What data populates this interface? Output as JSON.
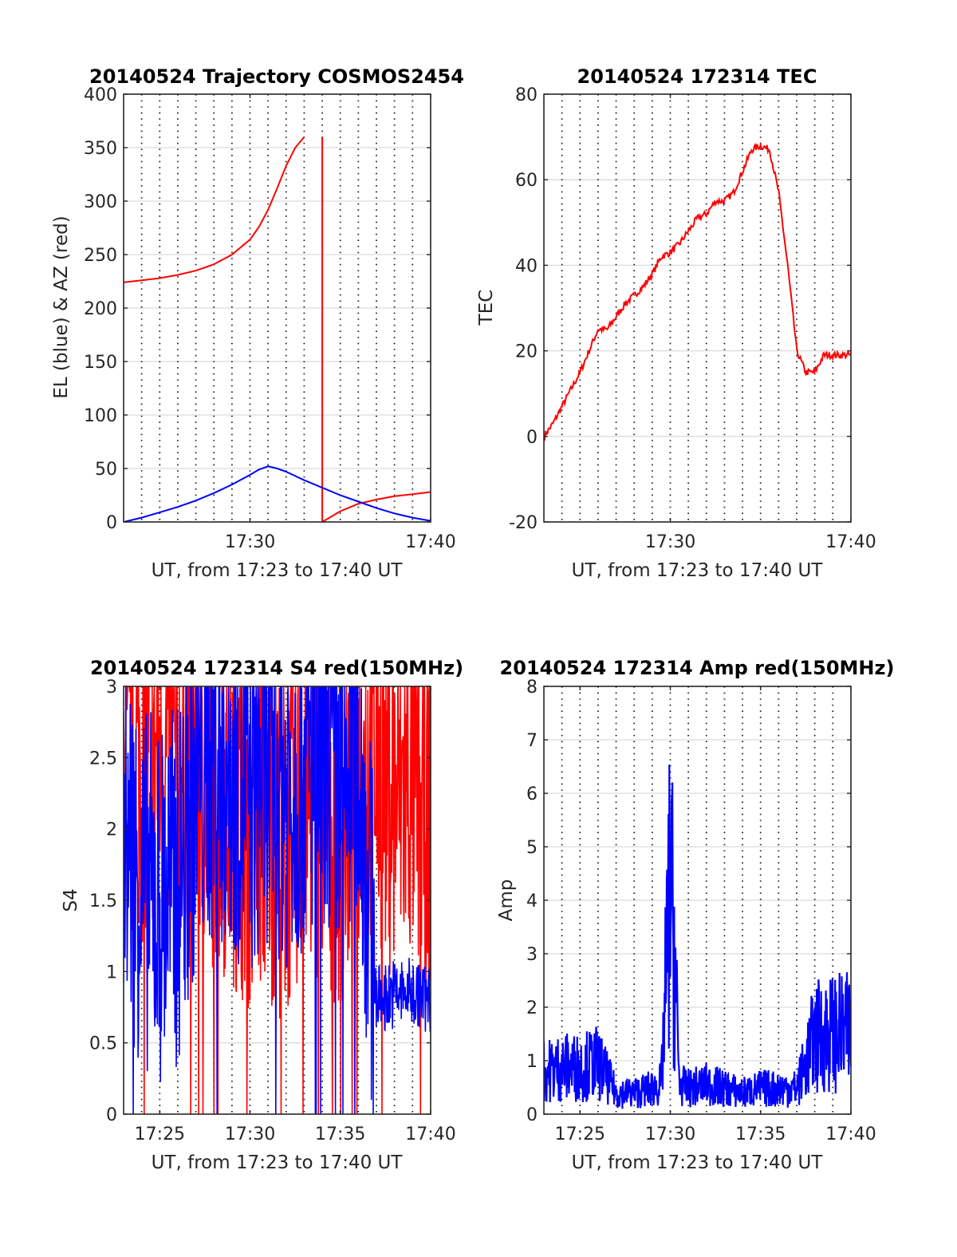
{
  "chart_data": [
    {
      "type": "line",
      "title": "20140524 Trajectory COSMOS2454",
      "xlabel": "UT, from 17:23 to 17:40 UT",
      "ylabel": "EL (blue) & AZ (red)",
      "xlim": [
        17.3833,
        17.6667
      ],
      "ylim": [
        0,
        400
      ],
      "yticks": [
        0,
        50,
        100,
        150,
        200,
        250,
        300,
        350,
        400
      ],
      "xticks": [
        {
          "value": 17.5,
          "label": "17:30"
        },
        {
          "value": 17.6667,
          "label": "17:40"
        }
      ],
      "grid": true,
      "series": [
        {
          "color": "#ff0000",
          "x": [
            17.3833,
            17.4,
            17.4167,
            17.4333,
            17.45,
            17.4667,
            17.4833,
            17.5,
            17.5083,
            17.5167,
            17.525,
            17.5333,
            17.5417,
            17.55,
            17.5667,
            17.5833,
            17.6,
            17.6167,
            17.6333,
            17.65,
            17.6667
          ],
          "values": [
            224,
            226,
            228,
            231,
            235,
            241,
            250,
            264,
            276,
            292,
            312,
            333,
            350,
            360,
            null,
            10,
            17,
            21,
            24,
            26,
            28
          ]
        },
        {
          "color": "#0000ff",
          "x": [
            17.3833,
            17.4,
            17.4167,
            17.4333,
            17.45,
            17.4667,
            17.4833,
            17.5,
            17.5083,
            17.5167,
            17.525,
            17.5333,
            17.5417,
            17.55,
            17.5667,
            17.5833,
            17.6,
            17.6167,
            17.6333,
            17.65,
            17.6667
          ],
          "values": [
            0,
            4,
            9,
            14,
            20,
            27,
            35,
            44,
            49,
            52,
            50,
            47,
            43,
            39,
            32,
            25,
            19,
            13,
            8,
            4,
            1
          ]
        }
      ]
    },
    {
      "type": "line",
      "title": "20140524 172314 TEC",
      "xlabel": "UT, from 17:23 to 17:40 UT",
      "ylabel": "TEC",
      "xlim": [
        17.3833,
        17.6667
      ],
      "ylim": [
        -20,
        80
      ],
      "yticks": [
        -20,
        0,
        20,
        40,
        60,
        80
      ],
      "xticks": [
        {
          "value": 17.5,
          "label": "17:30"
        },
        {
          "value": 17.6667,
          "label": "17:40"
        }
      ],
      "grid": true,
      "series": [
        {
          "color": "#ff0000",
          "x": [
            17.3833,
            17.3917,
            17.4,
            17.4083,
            17.4167,
            17.425,
            17.4333,
            17.4417,
            17.45,
            17.4583,
            17.4667,
            17.475,
            17.4833,
            17.4917,
            17.5,
            17.5083,
            17.5167,
            17.525,
            17.5333,
            17.5417,
            17.55,
            17.5583,
            17.5667,
            17.575,
            17.5833,
            17.5917,
            17.6,
            17.6083,
            17.6167,
            17.625,
            17.6333,
            17.6417,
            17.65,
            17.6583,
            17.6667
          ],
          "values": [
            0,
            3,
            7,
            11,
            15,
            20,
            25,
            25,
            28,
            31,
            33,
            35,
            38,
            42,
            43,
            45,
            48,
            51,
            52,
            55,
            55,
            57,
            62,
            67,
            68,
            67,
            57,
            40,
            20,
            15,
            15,
            19,
            19,
            19,
            19
          ]
        }
      ]
    },
    {
      "type": "line",
      "title": "20140524 172314 S4 red(150MHz)",
      "xlabel": "UT, from 17:23 to 17:40 UT",
      "ylabel": "S4",
      "xlim": [
        17.3833,
        17.6667
      ],
      "ylim": [
        0,
        3
      ],
      "yticks": [
        0,
        0.5,
        1,
        1.5,
        2,
        2.5,
        3
      ],
      "xticks": [
        {
          "value": 17.4167,
          "label": "17:25"
        },
        {
          "value": 17.5,
          "label": "17:30"
        },
        {
          "value": 17.5833,
          "label": "17:35"
        },
        {
          "value": 17.6667,
          "label": "17:40"
        }
      ],
      "grid": true,
      "series": [
        {
          "color": "#ff0000",
          "x": [
            17.3833,
            17.4,
            17.4167,
            17.4333,
            17.45,
            17.4667,
            17.4833,
            17.5,
            17.5167,
            17.5333,
            17.55,
            17.5667,
            17.5833,
            17.6,
            17.6167,
            17.6333,
            17.65,
            17.6667
          ],
          "values": [
            2.3,
            2.5,
            2.6,
            2.4,
            2.5,
            2.3,
            2.2,
            2.0,
            2.1,
            1.9,
            2.3,
            2.2,
            2.0,
            2.4,
            2.5,
            2.2,
            2.3,
            2.1
          ]
        },
        {
          "color": "#0000ff",
          "x": [
            17.3833,
            17.4,
            17.4167,
            17.4333,
            17.45,
            17.4667,
            17.4833,
            17.5,
            17.5167,
            17.5333,
            17.55,
            17.5667,
            17.5833,
            17.6,
            17.6167,
            17.6333,
            17.65,
            17.6667
          ],
          "values": [
            2.0,
            1.6,
            1.5,
            1.6,
            2.3,
            2.5,
            2.4,
            2.2,
            2.5,
            2.3,
            2.4,
            2.6,
            2.3,
            2.5,
            0.8,
            0.85,
            0.85,
            0.8
          ]
        }
      ]
    },
    {
      "type": "line",
      "title": "20140524 172314 Amp red(150MHz)",
      "xlabel": "UT, from 17:23 to 17:40 UT",
      "ylabel": "Amp",
      "xlim": [
        17.3833,
        17.6667
      ],
      "ylim": [
        0,
        8
      ],
      "yticks": [
        0,
        1,
        2,
        3,
        4,
        5,
        6,
        7,
        8
      ],
      "xticks": [
        {
          "value": 17.4167,
          "label": "17:25"
        },
        {
          "value": 17.5,
          "label": "17:30"
        },
        {
          "value": 17.5833,
          "label": "17:35"
        },
        {
          "value": 17.6667,
          "label": "17:40"
        }
      ],
      "grid": true,
      "series": [
        {
          "color": "#0000ff",
          "x": [
            17.3833,
            17.4,
            17.4167,
            17.4333,
            17.45,
            17.4667,
            17.4833,
            17.4917,
            17.4958,
            17.5,
            17.5042,
            17.5083,
            17.5167,
            17.5333,
            17.55,
            17.5667,
            17.5833,
            17.6,
            17.6167,
            17.6333,
            17.65,
            17.6667
          ],
          "values": [
            1.0,
            1.1,
            1.1,
            1.2,
            0.5,
            0.5,
            0.6,
            0.7,
            3.0,
            5.5,
            3.5,
            0.7,
            0.6,
            0.7,
            0.6,
            0.5,
            0.6,
            0.6,
            0.6,
            1.8,
            1.9,
            1.9
          ]
        }
      ]
    }
  ]
}
